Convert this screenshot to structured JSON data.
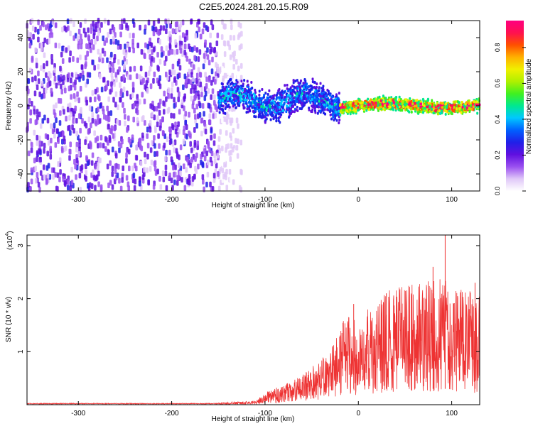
{
  "title": "C2E5.2024.281.20.15.R09",
  "chart_data": [
    {
      "type": "heatmap",
      "xlabel": "Height of straight line (km)",
      "ylabel": "Frequency (Hz)",
      "xlim": [
        -355,
        130
      ],
      "ylim": [
        -50,
        50
      ],
      "xticks": [
        -300,
        -200,
        -100,
        0,
        100
      ],
      "yticks": [
        -40,
        -20,
        0,
        20,
        40
      ],
      "colorbar": {
        "label": "Normalized spectral amplitude",
        "range": [
          0,
          0.95
        ],
        "ticks": [
          0.0,
          0.2,
          0.4,
          0.6,
          0.8
        ],
        "colors": [
          "#ffffff",
          "#e0c8f8",
          "#9a50f0",
          "#6010e0",
          "#2020e8",
          "#0060ff",
          "#00c8ff",
          "#00e890",
          "#40f020",
          "#b0f000",
          "#f0f000",
          "#ffb000",
          "#ff5000",
          "#ff1050",
          "#ff0080"
        ]
      },
      "bands": [
        {
          "x_from": -355,
          "x_to": -140,
          "description_values": "broadband noise",
          "f_from": -50,
          "f_to": 50,
          "amplitude": 0.2
        },
        {
          "x_from": -150,
          "x_to": -20,
          "f_center": 3,
          "f_halfwidth": 12,
          "amplitude": 0.35
        },
        {
          "x_from": -20,
          "x_to": 130,
          "f_center": 0,
          "f_halfwidth": 5,
          "amplitude": 0.8
        }
      ]
    },
    {
      "type": "line",
      "xlabel": "Height of straight line (km)",
      "ylabel": "SNR (10 * v/v)",
      "multiplier": "(x10",
      "multiplier_exp": "4",
      "multiplier_close": ")",
      "xlim": [
        -355,
        130
      ],
      "ylim": [
        0,
        3.2
      ],
      "xticks": [
        -300,
        -200,
        -100,
        0,
        100
      ],
      "yticks": [
        1,
        2,
        3
      ],
      "color": "#ee3333",
      "envelope": [
        {
          "x": -355,
          "y": 0.02
        },
        {
          "x": -150,
          "y": 0.02
        },
        {
          "x": -110,
          "y": 0.04
        },
        {
          "x": -100,
          "y": 0.12
        },
        {
          "x": -80,
          "y": 0.2
        },
        {
          "x": -60,
          "y": 0.3
        },
        {
          "x": -40,
          "y": 0.45
        },
        {
          "x": -30,
          "y": 0.55
        },
        {
          "x": -20,
          "y": 0.8
        },
        {
          "x": -10,
          "y": 0.9
        },
        {
          "x": 0,
          "y": 0.8
        },
        {
          "x": 10,
          "y": 0.95
        },
        {
          "x": 30,
          "y": 1.15
        },
        {
          "x": 60,
          "y": 1.2
        },
        {
          "x": 90,
          "y": 1.25
        },
        {
          "x": 110,
          "y": 1.15
        },
        {
          "x": 130,
          "y": 1.1
        }
      ],
      "peaks": [
        {
          "x": -5,
          "y": 1.9
        },
        {
          "x": 30,
          "y": 2.1
        },
        {
          "x": 80,
          "y": 2.6
        },
        {
          "x": 93,
          "y": 3.2
        },
        {
          "x": 125,
          "y": 2.3
        }
      ]
    }
  ]
}
